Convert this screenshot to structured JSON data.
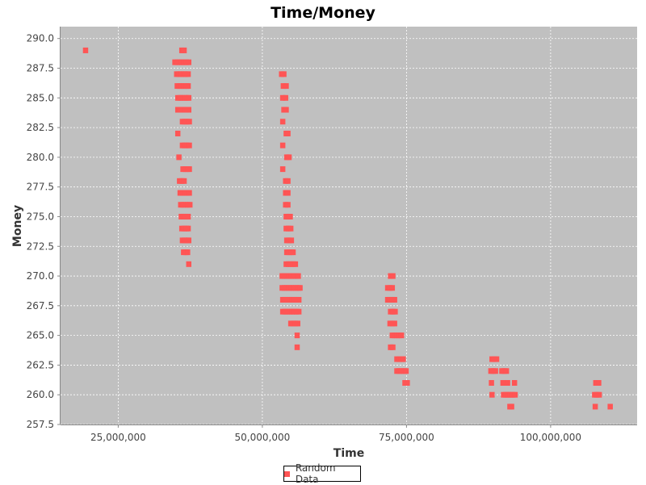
{
  "chart_data": {
    "type": "scatter",
    "title": "Time/Money",
    "xlabel": "Time",
    "ylabel": "Money",
    "xlim": [
      15000000,
      115000000
    ],
    "ylim": [
      257.5,
      291.0
    ],
    "xticks": [
      {
        "value": 25000000,
        "label": "25,000,000"
      },
      {
        "value": 50000000,
        "label": "50,000,000"
      },
      {
        "value": 75000000,
        "label": "75,000,000"
      },
      {
        "value": 100000000,
        "label": "100,000,000"
      }
    ],
    "yticks": [
      {
        "value": 257.5,
        "label": "257.5"
      },
      {
        "value": 260.0,
        "label": "260.0"
      },
      {
        "value": 262.5,
        "label": "262.5"
      },
      {
        "value": 265.0,
        "label": "265.0"
      },
      {
        "value": 267.5,
        "label": "267.5"
      },
      {
        "value": 270.0,
        "label": "270.0"
      },
      {
        "value": 272.5,
        "label": "272.5"
      },
      {
        "value": 275.0,
        "label": "275.0"
      },
      {
        "value": 277.5,
        "label": "277.5"
      },
      {
        "value": 280.0,
        "label": "280.0"
      },
      {
        "value": 282.5,
        "label": "282.5"
      },
      {
        "value": 285.0,
        "label": "285.0"
      },
      {
        "value": 287.5,
        "label": "287.5"
      },
      {
        "value": 290.0,
        "label": "290.0"
      }
    ],
    "grid": true,
    "legend_position": "bottom-center",
    "colors": {
      "plot_background": "#c0c0c0",
      "grid": "#ffffff",
      "series": "#ff5555"
    },
    "series": [
      {
        "name": "Random Data",
        "points": [
          [
            19300000,
            289
          ],
          [
            36000000,
            289
          ],
          [
            36400000,
            289
          ],
          [
            34800000,
            288
          ],
          [
            35200000,
            288
          ],
          [
            35600000,
            288
          ],
          [
            36000000,
            288
          ],
          [
            36400000,
            288
          ],
          [
            36800000,
            288
          ],
          [
            37200000,
            288
          ],
          [
            35100000,
            287
          ],
          [
            35500000,
            287
          ],
          [
            35900000,
            287
          ],
          [
            36300000,
            287
          ],
          [
            36700000,
            287
          ],
          [
            37100000,
            287
          ],
          [
            53300000,
            287
          ],
          [
            53700000,
            287
          ],
          [
            35200000,
            286
          ],
          [
            35600000,
            286
          ],
          [
            36000000,
            286
          ],
          [
            36400000,
            286
          ],
          [
            36800000,
            286
          ],
          [
            37100000,
            286
          ],
          [
            53600000,
            286
          ],
          [
            54100000,
            286
          ],
          [
            35300000,
            285
          ],
          [
            35700000,
            285
          ],
          [
            36100000,
            285
          ],
          [
            36500000,
            285
          ],
          [
            36900000,
            285
          ],
          [
            37200000,
            285
          ],
          [
            53500000,
            285
          ],
          [
            54000000,
            285
          ],
          [
            35300000,
            284
          ],
          [
            35700000,
            284
          ],
          [
            36100000,
            284
          ],
          [
            36500000,
            284
          ],
          [
            36900000,
            284
          ],
          [
            37200000,
            284
          ],
          [
            53700000,
            284
          ],
          [
            54100000,
            284
          ],
          [
            36100000,
            283
          ],
          [
            36500000,
            283
          ],
          [
            36900000,
            283
          ],
          [
            37300000,
            283
          ],
          [
            53500000,
            283
          ],
          [
            35300000,
            282
          ],
          [
            54100000,
            282
          ],
          [
            54400000,
            282
          ],
          [
            36100000,
            281
          ],
          [
            36500000,
            281
          ],
          [
            36900000,
            281
          ],
          [
            37300000,
            281
          ],
          [
            53500000,
            281
          ],
          [
            35500000,
            280
          ],
          [
            54200000,
            280
          ],
          [
            54600000,
            280
          ],
          [
            36200000,
            279
          ],
          [
            36600000,
            279
          ],
          [
            37000000,
            279
          ],
          [
            37300000,
            279
          ],
          [
            53500000,
            279
          ],
          [
            35600000,
            278
          ],
          [
            36000000,
            278
          ],
          [
            36400000,
            278
          ],
          [
            54000000,
            278
          ],
          [
            54400000,
            278
          ],
          [
            35700000,
            277
          ],
          [
            36100000,
            277
          ],
          [
            36500000,
            277
          ],
          [
            36900000,
            277
          ],
          [
            37300000,
            277
          ],
          [
            54000000,
            277
          ],
          [
            54400000,
            277
          ],
          [
            35800000,
            276
          ],
          [
            36200000,
            276
          ],
          [
            36600000,
            276
          ],
          [
            37000000,
            276
          ],
          [
            37400000,
            276
          ],
          [
            54000000,
            276
          ],
          [
            54400000,
            276
          ],
          [
            35900000,
            275
          ],
          [
            36300000,
            275
          ],
          [
            36700000,
            275
          ],
          [
            37100000,
            275
          ],
          [
            54100000,
            275
          ],
          [
            54500000,
            275
          ],
          [
            54800000,
            275
          ],
          [
            36000000,
            274
          ],
          [
            36400000,
            274
          ],
          [
            36800000,
            274
          ],
          [
            37100000,
            274
          ],
          [
            54100000,
            274
          ],
          [
            54500000,
            274
          ],
          [
            54900000,
            274
          ],
          [
            36100000,
            273
          ],
          [
            36500000,
            273
          ],
          [
            36900000,
            273
          ],
          [
            37200000,
            273
          ],
          [
            54200000,
            273
          ],
          [
            54600000,
            273
          ],
          [
            55000000,
            273
          ],
          [
            36300000,
            272
          ],
          [
            36700000,
            272
          ],
          [
            37000000,
            272
          ],
          [
            54200000,
            272
          ],
          [
            54600000,
            272
          ],
          [
            55000000,
            272
          ],
          [
            55300000,
            272
          ],
          [
            37200000,
            271
          ],
          [
            54100000,
            271
          ],
          [
            54500000,
            271
          ],
          [
            54900000,
            271
          ],
          [
            55300000,
            271
          ],
          [
            55700000,
            271
          ],
          [
            72200000,
            270
          ],
          [
            72600000,
            270
          ],
          [
            53400000,
            270
          ],
          [
            53800000,
            270
          ],
          [
            54200000,
            270
          ],
          [
            54600000,
            270
          ],
          [
            55000000,
            270
          ],
          [
            55400000,
            270
          ],
          [
            55800000,
            270
          ],
          [
            56200000,
            270
          ],
          [
            71700000,
            269
          ],
          [
            72100000,
            269
          ],
          [
            72500000,
            269
          ],
          [
            53400000,
            269
          ],
          [
            53800000,
            269
          ],
          [
            54200000,
            269
          ],
          [
            54600000,
            269
          ],
          [
            55000000,
            269
          ],
          [
            55400000,
            269
          ],
          [
            55800000,
            269
          ],
          [
            56200000,
            269
          ],
          [
            56500000,
            269
          ],
          [
            71700000,
            268
          ],
          [
            72100000,
            268
          ],
          [
            72500000,
            268
          ],
          [
            72900000,
            268
          ],
          [
            53500000,
            268
          ],
          [
            53900000,
            268
          ],
          [
            54300000,
            268
          ],
          [
            54700000,
            268
          ],
          [
            55100000,
            268
          ],
          [
            55500000,
            268
          ],
          [
            55900000,
            268
          ],
          [
            56300000,
            268
          ],
          [
            72200000,
            267
          ],
          [
            72600000,
            267
          ],
          [
            73000000,
            267
          ],
          [
            53500000,
            267
          ],
          [
            53900000,
            267
          ],
          [
            54300000,
            267
          ],
          [
            54700000,
            267
          ],
          [
            55100000,
            267
          ],
          [
            55500000,
            267
          ],
          [
            55900000,
            267
          ],
          [
            56300000,
            267
          ],
          [
            72100000,
            266
          ],
          [
            72500000,
            266
          ],
          [
            72900000,
            266
          ],
          [
            54900000,
            266
          ],
          [
            55300000,
            266
          ],
          [
            55700000,
            266
          ],
          [
            56100000,
            266
          ],
          [
            72500000,
            265
          ],
          [
            72900000,
            265
          ],
          [
            73300000,
            265
          ],
          [
            73700000,
            265
          ],
          [
            74100000,
            265
          ],
          [
            56000000,
            265
          ],
          [
            72200000,
            264
          ],
          [
            72600000,
            264
          ],
          [
            56000000,
            264
          ],
          [
            73300000,
            263
          ],
          [
            73700000,
            263
          ],
          [
            74100000,
            263
          ],
          [
            74400000,
            263
          ],
          [
            89800000,
            263
          ],
          [
            90200000,
            263
          ],
          [
            90600000,
            263
          ],
          [
            73300000,
            262
          ],
          [
            73700000,
            262
          ],
          [
            74100000,
            262
          ],
          [
            74500000,
            262
          ],
          [
            74900000,
            262
          ],
          [
            89600000,
            262
          ],
          [
            90000000,
            262
          ],
          [
            90400000,
            262
          ],
          [
            91500000,
            262
          ],
          [
            91900000,
            262
          ],
          [
            92300000,
            262
          ],
          [
            74700000,
            261
          ],
          [
            75100000,
            261
          ],
          [
            89700000,
            261
          ],
          [
            91700000,
            261
          ],
          [
            92100000,
            261
          ],
          [
            92500000,
            261
          ],
          [
            93700000,
            261
          ],
          [
            107800000,
            261
          ],
          [
            108300000,
            261
          ],
          [
            89800000,
            260
          ],
          [
            91800000,
            260
          ],
          [
            92200000,
            260
          ],
          [
            92600000,
            260
          ],
          [
            93000000,
            260
          ],
          [
            93400000,
            260
          ],
          [
            93800000,
            260
          ],
          [
            107600000,
            260
          ],
          [
            108000000,
            260
          ],
          [
            108400000,
            260
          ],
          [
            92900000,
            259
          ],
          [
            93200000,
            259
          ],
          [
            107700000,
            259
          ],
          [
            110300000,
            259
          ]
        ]
      }
    ]
  }
}
